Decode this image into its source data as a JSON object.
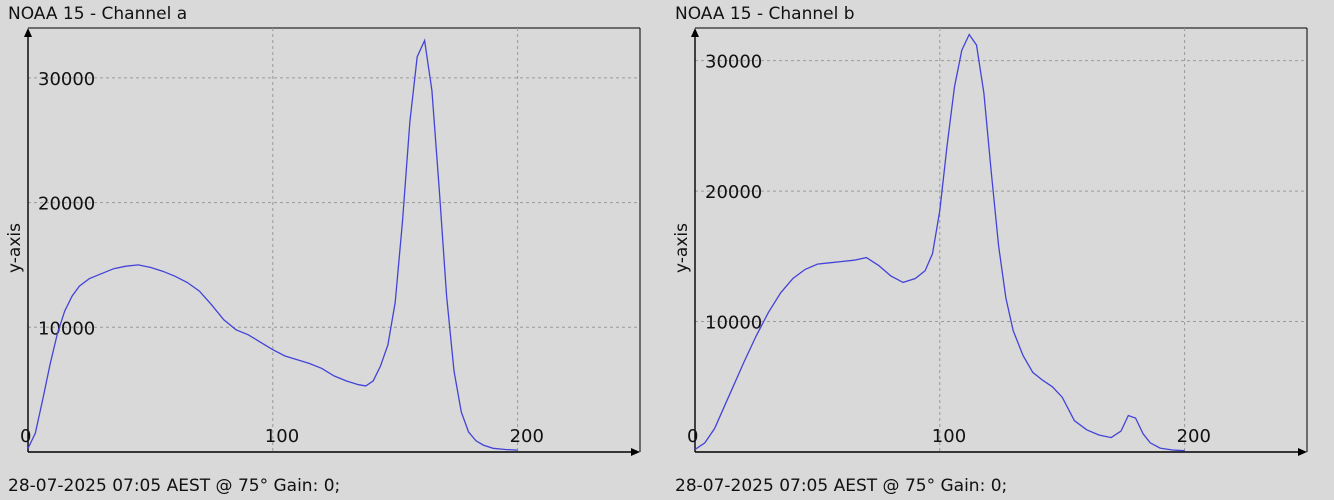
{
  "chart_data": [
    {
      "type": "line",
      "title": "NOAA 15 - Channel a",
      "footer": "28-07-2025 07:05 AEST @ 75° Gain: 0;",
      "xlabel": "",
      "ylabel": "y-axis",
      "xlim": [
        0,
        250
      ],
      "ylim": [
        0,
        34000
      ],
      "x_ticks": [
        0,
        100,
        200
      ],
      "y_ticks": [
        10000,
        20000,
        30000
      ],
      "grid": true,
      "series": [
        {
          "color": "#4343d8",
          "x": [
            0,
            3,
            6,
            9,
            12,
            15,
            18,
            21,
            25,
            30,
            35,
            40,
            45,
            50,
            55,
            60,
            65,
            70,
            75,
            80,
            85,
            90,
            95,
            100,
            105,
            110,
            115,
            120,
            125,
            130,
            135,
            138,
            141,
            144,
            147,
            150,
            153,
            156,
            159,
            162,
            165,
            168,
            171,
            174,
            177,
            180,
            183,
            186,
            190,
            195,
            200
          ],
          "y": [
            300,
            1500,
            4200,
            7000,
            9500,
            11300,
            12500,
            13300,
            13900,
            14300,
            14700,
            14900,
            15000,
            14800,
            14500,
            14100,
            13600,
            12900,
            11800,
            10600,
            9800,
            9400,
            8800,
            8200,
            7700,
            7400,
            7100,
            6700,
            6100,
            5700,
            5400,
            5300,
            5700,
            6900,
            8600,
            12000,
            18500,
            26500,
            31700,
            33000,
            29000,
            21000,
            12500,
            6500,
            3200,
            1600,
            900,
            550,
            300,
            200,
            150
          ]
        }
      ]
    },
    {
      "type": "line",
      "title": "NOAA 15 - Channel b",
      "footer": "28-07-2025 07:05 AEST @ 75° Gain: 0;",
      "xlabel": "",
      "ylabel": "y-axis",
      "xlim": [
        0,
        250
      ],
      "ylim": [
        0,
        32500
      ],
      "x_ticks": [
        0,
        100,
        200
      ],
      "y_ticks": [
        10000,
        20000,
        30000
      ],
      "grid": true,
      "series": [
        {
          "color": "#4343d8",
          "x": [
            0,
            4,
            8,
            12,
            16,
            20,
            25,
            30,
            35,
            40,
            45,
            50,
            55,
            60,
            65,
            70,
            75,
            80,
            85,
            90,
            94,
            97,
            100,
            103,
            106,
            109,
            112,
            115,
            118,
            121,
            124,
            127,
            130,
            134,
            138,
            142,
            146,
            150,
            155,
            160,
            165,
            170,
            174,
            177,
            180,
            183,
            186,
            190,
            195,
            200
          ],
          "y": [
            200,
            700,
            1800,
            3500,
            5200,
            6900,
            8900,
            10700,
            12200,
            13300,
            14000,
            14400,
            14500,
            14600,
            14700,
            14900,
            14300,
            13500,
            13000,
            13300,
            13900,
            15200,
            18500,
            23500,
            28000,
            30800,
            32000,
            31200,
            27500,
            21500,
            15800,
            11800,
            9300,
            7400,
            6100,
            5500,
            5000,
            4200,
            2400,
            1700,
            1300,
            1100,
            1600,
            2800,
            2600,
            1400,
            700,
            300,
            150,
            100
          ]
        }
      ]
    }
  ]
}
